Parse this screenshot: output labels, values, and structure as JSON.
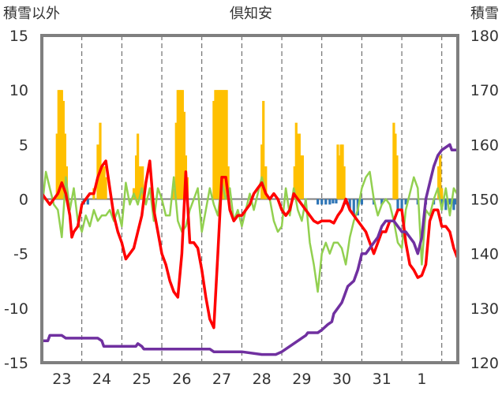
{
  "chart_data": {
    "type": "bar+line",
    "title": "倶知安",
    "left_axis_label": "積雪以外",
    "right_axis_label": "積雪",
    "left_ylim": [
      -15,
      15
    ],
    "left_ticks": [
      15,
      10,
      5,
      0,
      -5,
      -10,
      -15
    ],
    "right_ylim": [
      120,
      180
    ],
    "right_ticks": [
      180,
      170,
      160,
      150,
      140,
      130,
      120
    ],
    "x_range": [
      0,
      10.4
    ],
    "x_ticks": [
      {
        "label": "23",
        "pos": 0.5
      },
      {
        "label": "24",
        "pos": 1.5
      },
      {
        "label": "25",
        "pos": 2.5
      },
      {
        "label": "26",
        "pos": 3.5
      },
      {
        "label": "27",
        "pos": 4.5
      },
      {
        "label": "28",
        "pos": 5.5
      },
      {
        "label": "29",
        "pos": 6.5
      },
      {
        "label": "30",
        "pos": 7.5
      },
      {
        "label": "31",
        "pos": 8.5
      },
      {
        "label": "1",
        "pos": 9.5
      }
    ],
    "day_separators": [
      1,
      2,
      3,
      4,
      5,
      6,
      7,
      8,
      9,
      10
    ],
    "grid": "dashed vertical at day boundaries, solid horizontal at 0",
    "colors": {
      "snowfall_bar": "#ffc000",
      "snow_change_neg_bar": "#2e75b6",
      "temperature_line": "#ff0000",
      "secondary_line": "#92d050",
      "snow_depth_line": "#7030a0"
    },
    "series": [
      {
        "key": "snowfall_bars",
        "type": "bar",
        "axis": "left",
        "x": [
          0.38,
          0.42,
          0.46,
          0.5,
          0.54,
          0.58,
          0.62,
          1.4,
          1.46,
          1.5,
          1.56,
          1.6,
          1.3,
          2.36,
          2.4,
          2.44,
          2.48,
          2.52,
          2.56,
          2.3,
          3.3,
          3.36,
          3.4,
          3.44,
          3.48,
          3.52,
          3.56,
          3.6,
          3.64,
          4.3,
          4.34,
          4.38,
          4.42,
          4.46,
          4.5,
          4.54,
          4.58,
          4.62,
          4.66,
          5.5,
          5.54,
          5.6,
          6.32,
          6.36,
          6.4,
          6.44,
          6.48,
          6.52,
          7.4,
          7.44,
          7.48,
          7.52,
          7.56,
          8.8,
          8.84,
          8.88,
          9.92,
          9.96,
          10.0
        ],
        "values": [
          6,
          10,
          10,
          10,
          9,
          6,
          3,
          5,
          7,
          3,
          3,
          2,
          1,
          4,
          6,
          3,
          3,
          3,
          1,
          1,
          1,
          7,
          10,
          10,
          10,
          10,
          8,
          4,
          2,
          9,
          10,
          10,
          10,
          10,
          10,
          10,
          10,
          10,
          3,
          5,
          9,
          3,
          3,
          7,
          6,
          6,
          4,
          4,
          5,
          4,
          5,
          5,
          3,
          7,
          6,
          4,
          3,
          4,
          1
        ]
      },
      {
        "key": "snow_change_negative_bars",
        "type": "bar",
        "axis": "left",
        "x": [
          1.05,
          1.15,
          6.9,
          7.0,
          7.1,
          7.2,
          7.28,
          7.36,
          7.6,
          7.7,
          7.8,
          7.9,
          8.0,
          8.3,
          8.5,
          8.9,
          9.0,
          9.1,
          9.4,
          9.6,
          9.8,
          10.0,
          10.1,
          10.2,
          10.3,
          10.36
        ],
        "values": [
          -0.5,
          -0.5,
          -0.5,
          -0.5,
          -0.5,
          -0.5,
          -0.4,
          -0.4,
          -0.5,
          -1,
          -1.5,
          -1.5,
          -0.5,
          -0.5,
          -0.5,
          -1,
          -1,
          -0.5,
          -0.5,
          -0.5,
          -0.5,
          -1,
          -1,
          -0.5,
          -1,
          -0.5
        ]
      },
      {
        "key": "temperature_red",
        "type": "line",
        "axis": "left",
        "x": [
          0,
          0.1,
          0.2,
          0.3,
          0.4,
          0.5,
          0.6,
          0.7,
          0.75,
          0.8,
          0.9,
          1.0,
          1.1,
          1.2,
          1.3,
          1.4,
          1.5,
          1.6,
          1.7,
          1.8,
          1.9,
          2.0,
          2.1,
          2.2,
          2.3,
          2.4,
          2.5,
          2.6,
          2.7,
          2.8,
          2.9,
          3.0,
          3.1,
          3.2,
          3.3,
          3.4,
          3.5,
          3.6,
          3.7,
          3.8,
          3.9,
          4.0,
          4.1,
          4.2,
          4.3,
          4.4,
          4.5,
          4.6,
          4.7,
          4.8,
          4.9,
          5.0,
          5.1,
          5.2,
          5.3,
          5.4,
          5.5,
          5.6,
          5.7,
          5.8,
          5.9,
          6.0,
          6.1,
          6.2,
          6.3,
          6.4,
          6.5,
          6.6,
          6.7,
          6.8,
          6.9,
          7.0,
          7.1,
          7.2,
          7.3,
          7.4,
          7.5,
          7.6,
          7.7,
          7.8,
          7.9,
          8.0,
          8.1,
          8.2,
          8.3,
          8.4,
          8.5,
          8.6,
          8.7,
          8.8,
          8.9,
          9.0,
          9.1,
          9.2,
          9.3,
          9.4,
          9.5,
          9.6,
          9.7,
          9.8,
          9.9,
          10.0,
          10.1,
          10.2,
          10.3,
          10.38
        ],
        "values": [
          0.5,
          0,
          -0.5,
          0,
          0.5,
          1.5,
          0.5,
          -1.5,
          -3.5,
          -3,
          -2.5,
          -0.5,
          0,
          0.5,
          0.5,
          2,
          3,
          3.5,
          1,
          -1.5,
          -3,
          -4,
          -5.5,
          -5,
          -4.5,
          -3,
          -1.5,
          1.5,
          3.5,
          -1,
          -3,
          -5,
          -6,
          -7.5,
          -8.5,
          -9,
          -5,
          2.5,
          -4,
          -4,
          -4.5,
          -6.5,
          -9,
          -11,
          -11.8,
          -5,
          2,
          2,
          -1,
          -2,
          -1.5,
          -1.5,
          -1,
          -0.5,
          0.5,
          1,
          1.5,
          0.5,
          0,
          0.5,
          0,
          -1,
          -1.5,
          -1,
          0.5,
          0,
          -0.5,
          -1,
          -1.5,
          -2,
          -2.2,
          -2,
          -2,
          -2,
          -2.2,
          -1.5,
          -1,
          0,
          -1,
          -1.5,
          -2,
          -2.5,
          -3,
          -4,
          -5,
          -4,
          -3,
          -3,
          -2,
          -2,
          -1,
          -1,
          -4,
          -6,
          -6.5,
          -7.2,
          -7,
          -6,
          -2,
          -1,
          -1,
          -2.5,
          -2.5,
          -3,
          -4.5,
          -5.3
        ]
      },
      {
        "key": "secondary_green",
        "type": "line",
        "axis": "left",
        "x": [
          0,
          0.1,
          0.2,
          0.3,
          0.4,
          0.5,
          0.6,
          0.7,
          0.8,
          0.9,
          1.0,
          1.1,
          1.2,
          1.3,
          1.4,
          1.5,
          1.6,
          1.7,
          1.8,
          1.9,
          2.0,
          2.1,
          2.2,
          2.3,
          2.4,
          2.5,
          2.6,
          2.7,
          2.8,
          2.9,
          3.0,
          3.1,
          3.2,
          3.3,
          3.4,
          3.5,
          3.6,
          3.7,
          3.8,
          3.9,
          4.0,
          4.1,
          4.2,
          4.3,
          4.4,
          4.5,
          4.6,
          4.7,
          4.8,
          4.9,
          5.0,
          5.1,
          5.2,
          5.3,
          5.4,
          5.5,
          5.6,
          5.7,
          5.8,
          5.9,
          6.0,
          6.1,
          6.2,
          6.3,
          6.4,
          6.5,
          6.6,
          6.7,
          6.8,
          6.9,
          7.0,
          7.1,
          7.2,
          7.3,
          7.4,
          7.5,
          7.6,
          7.7,
          7.8,
          7.9,
          8.0,
          8.1,
          8.2,
          8.3,
          8.4,
          8.5,
          8.6,
          8.7,
          8.8,
          8.9,
          9.0,
          9.1,
          9.2,
          9.3,
          9.4,
          9.5,
          9.6,
          9.7,
          9.8,
          9.9,
          10.0,
          10.1,
          10.2,
          10.3,
          10.38
        ],
        "values": [
          -1,
          2.5,
          1,
          -0.5,
          -1,
          -3.5,
          2,
          -1,
          1,
          -2,
          -3,
          -1.5,
          -2.5,
          -1,
          -2,
          -1.5,
          -1.5,
          -1,
          -2,
          -1,
          -2.5,
          1.5,
          -0.5,
          0.5,
          -0.5,
          1,
          -0.5,
          1,
          -2,
          1,
          0,
          -1.5,
          -1.5,
          2,
          -2,
          -3,
          -2.5,
          -1,
          0,
          1,
          -3,
          -1,
          1,
          -0.5,
          -1.5,
          1.5,
          0,
          1,
          -2,
          -1,
          -2.5,
          -1,
          0.5,
          -1,
          0.5,
          2,
          0.5,
          0,
          -2,
          -3,
          -2.5,
          1,
          -1.5,
          1,
          -1,
          -2,
          0,
          -4,
          -6,
          -8.5,
          -5,
          -4,
          -5,
          -4,
          -4,
          -4.5,
          -6,
          -3.5,
          -2,
          -1,
          1,
          2,
          2.5,
          0,
          -1.5,
          -0.5,
          0,
          -0.5,
          -2,
          -4,
          -4.5,
          -1,
          0.5,
          2,
          1,
          -6,
          -1,
          -1.5,
          0,
          1,
          -1,
          1,
          -1.5,
          1,
          0.5
        ]
      },
      {
        "key": "snow_depth_purple",
        "type": "line",
        "axis": "right",
        "x": [
          0,
          0.15,
          0.2,
          0.5,
          0.6,
          1.0,
          1.4,
          1.5,
          1.55,
          2.0,
          2.35,
          2.4,
          2.5,
          2.55,
          3.5,
          4.2,
          4.3,
          5.0,
          5.5,
          5.85,
          6.0,
          6.3,
          6.6,
          6.65,
          6.9,
          7.0,
          7.15,
          7.25,
          7.3,
          7.4,
          7.5,
          7.55,
          7.65,
          7.8,
          7.9,
          8.0,
          8.1,
          8.3,
          8.4,
          8.5,
          8.6,
          8.7,
          8.8,
          8.9,
          9.0,
          9.1,
          9.2,
          9.3,
          9.4,
          9.5,
          9.6,
          9.7,
          9.8,
          9.9,
          10.0,
          10.2,
          10.25,
          10.4
        ],
        "values": [
          124,
          124,
          125,
          125,
          124.5,
          124.5,
          124.5,
          124,
          123,
          123,
          123,
          123.5,
          123,
          122.5,
          122.5,
          122.5,
          122,
          122,
          121.5,
          121.5,
          122,
          123.5,
          125,
          125.5,
          125.5,
          126,
          127,
          127.5,
          129,
          130,
          131,
          132,
          134,
          135,
          137,
          140,
          140,
          142,
          143,
          145,
          146,
          146,
          146,
          145,
          144,
          144,
          143,
          142,
          140,
          143,
          150,
          153,
          156,
          158,
          159,
          160,
          159,
          159
        ]
      }
    ]
  }
}
